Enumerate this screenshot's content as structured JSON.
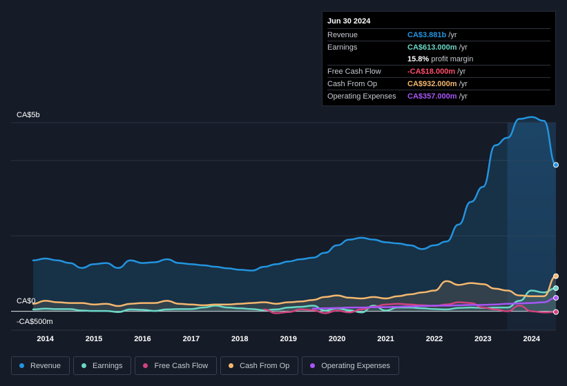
{
  "tooltip": {
    "date": "Jun 30 2024",
    "rows": [
      {
        "label": "Revenue",
        "value": "CA$3.881b",
        "unit": "/yr",
        "color": "#2394df"
      },
      {
        "label": "Earnings",
        "value": "CA$613.000m",
        "unit": "/yr",
        "color": "#6ad7c6"
      },
      {
        "label": "",
        "value": "15.8%",
        "unit": "profit margin",
        "color": "#ffffff"
      },
      {
        "label": "Free Cash Flow",
        "value": "-CA$18.000m",
        "unit": "/yr",
        "color": "#ff4e6b"
      },
      {
        "label": "Cash From Op",
        "value": "CA$932.000m",
        "unit": "/yr",
        "color": "#f5b86f"
      },
      {
        "label": "Operating Expenses",
        "value": "CA$357.000m",
        "unit": "/yr",
        "color": "#a855f7"
      }
    ]
  },
  "legend": [
    {
      "label": "Revenue",
      "color": "#2394df"
    },
    {
      "label": "Earnings",
      "color": "#6ad7c6"
    },
    {
      "label": "Free Cash Flow",
      "color": "#d0437e"
    },
    {
      "label": "Cash From Op",
      "color": "#f5b86f"
    },
    {
      "label": "Operating Expenses",
      "color": "#a855f7"
    }
  ],
  "chart_data": {
    "type": "line",
    "title": "",
    "ylabel_top": "CA$5b",
    "ylabel_zero": "CA$0",
    "ylabel_bottom": "-CA$500m",
    "ylim": [
      -0.5,
      5.0
    ],
    "xlim": [
      2013.75,
      2024.5
    ],
    "x_ticks": [
      "2014",
      "2015",
      "2016",
      "2017",
      "2018",
      "2019",
      "2020",
      "2021",
      "2022",
      "2023",
      "2024"
    ],
    "x_tick_values": [
      2014,
      2015,
      2016,
      2017,
      2018,
      2019,
      2020,
      2021,
      2022,
      2023,
      2024
    ],
    "highlight_from": 2023.5,
    "series": [
      {
        "name": "Revenue",
        "color": "#2394df",
        "area": true,
        "x": [
          2013.75,
          2014.0,
          2014.25,
          2014.5,
          2014.75,
          2015.0,
          2015.25,
          2015.5,
          2015.75,
          2016.0,
          2016.25,
          2016.5,
          2016.75,
          2017.0,
          2017.25,
          2017.5,
          2017.75,
          2018.0,
          2018.25,
          2018.5,
          2018.75,
          2019.0,
          2019.25,
          2019.5,
          2019.75,
          2020.0,
          2020.25,
          2020.5,
          2020.75,
          2021.0,
          2021.25,
          2021.5,
          2021.75,
          2022.0,
          2022.25,
          2022.5,
          2022.75,
          2023.0,
          2023.25,
          2023.5,
          2023.75,
          2024.0,
          2024.25,
          2024.5
        ],
        "y": [
          1.35,
          1.4,
          1.35,
          1.28,
          1.15,
          1.25,
          1.28,
          1.15,
          1.35,
          1.28,
          1.3,
          1.38,
          1.28,
          1.25,
          1.22,
          1.18,
          1.14,
          1.1,
          1.08,
          1.18,
          1.25,
          1.32,
          1.38,
          1.42,
          1.55,
          1.75,
          1.9,
          1.95,
          1.9,
          1.83,
          1.8,
          1.75,
          1.65,
          1.75,
          1.85,
          2.3,
          2.9,
          3.3,
          4.4,
          4.6,
          5.1,
          5.15,
          5.05,
          3.881
        ]
      },
      {
        "name": "Earnings",
        "color": "#6ad7c6",
        "area": true,
        "x": [
          2013.75,
          2014.0,
          2014.25,
          2014.5,
          2014.75,
          2015.0,
          2015.25,
          2015.5,
          2015.75,
          2016.0,
          2016.25,
          2016.5,
          2016.75,
          2017.0,
          2017.25,
          2017.5,
          2017.75,
          2018.0,
          2018.25,
          2018.5,
          2018.75,
          2019.0,
          2019.25,
          2019.5,
          2019.75,
          2020.0,
          2020.25,
          2020.5,
          2020.75,
          2021.0,
          2021.25,
          2021.5,
          2021.75,
          2022.0,
          2022.25,
          2022.5,
          2022.75,
          2023.0,
          2023.25,
          2023.5,
          2023.75,
          2024.0,
          2024.25,
          2024.5
        ],
        "y": [
          0.05,
          0.07,
          0.06,
          0.06,
          0.02,
          0.01,
          0.01,
          -0.02,
          0.05,
          0.04,
          0.01,
          0.05,
          0.06,
          0.06,
          0.1,
          0.15,
          0.1,
          0.08,
          0.06,
          0.03,
          0.05,
          0.1,
          0.12,
          0.15,
          0.02,
          0.08,
          0.03,
          -0.03,
          0.15,
          0.02,
          0.1,
          0.1,
          0.08,
          0.06,
          0.05,
          0.09,
          0.1,
          0.09,
          0.1,
          0.1,
          0.28,
          0.55,
          0.5,
          0.613
        ]
      },
      {
        "name": "Free Cash Flow",
        "color": "#d0437e",
        "area": false,
        "x": [
          2018.5,
          2018.75,
          2019.0,
          2019.25,
          2019.5,
          2019.75,
          2020.0,
          2020.25,
          2020.5,
          2020.75,
          2021.0,
          2021.25,
          2021.5,
          2021.75,
          2022.0,
          2022.25,
          2022.5,
          2022.75,
          2023.0,
          2023.25,
          2023.5,
          2023.75,
          2024.0,
          2024.25,
          2024.5
        ],
        "y": [
          0.05,
          -0.05,
          -0.02,
          0.05,
          0.03,
          -0.05,
          0.02,
          -0.03,
          0.05,
          0.12,
          0.18,
          0.2,
          0.18,
          0.16,
          0.14,
          0.18,
          0.24,
          0.22,
          0.1,
          0.05,
          0.0,
          0.15,
          0.0,
          -0.03,
          -0.018
        ]
      },
      {
        "name": "Cash From Op",
        "color": "#f5b86f",
        "area": true,
        "x": [
          2013.75,
          2014.0,
          2014.25,
          2014.5,
          2014.75,
          2015.0,
          2015.25,
          2015.5,
          2015.75,
          2016.0,
          2016.25,
          2016.5,
          2016.75,
          2017.0,
          2017.25,
          2017.5,
          2017.75,
          2018.0,
          2018.25,
          2018.5,
          2018.75,
          2019.0,
          2019.25,
          2019.5,
          2019.75,
          2020.0,
          2020.25,
          2020.5,
          2020.75,
          2021.0,
          2021.25,
          2021.5,
          2021.75,
          2022.0,
          2022.25,
          2022.5,
          2022.75,
          2023.0,
          2023.25,
          2023.5,
          2023.75,
          2024.0,
          2024.25,
          2024.5
        ],
        "y": [
          0.2,
          0.28,
          0.24,
          0.22,
          0.22,
          0.18,
          0.2,
          0.14,
          0.2,
          0.22,
          0.22,
          0.28,
          0.2,
          0.18,
          0.16,
          0.18,
          0.18,
          0.2,
          0.22,
          0.24,
          0.2,
          0.24,
          0.26,
          0.3,
          0.38,
          0.42,
          0.36,
          0.34,
          0.38,
          0.34,
          0.4,
          0.45,
          0.5,
          0.55,
          0.8,
          0.7,
          0.75,
          0.72,
          0.6,
          0.55,
          0.42,
          0.4,
          0.4,
          0.932
        ]
      },
      {
        "name": "Operating Expenses",
        "color": "#a855f7",
        "area": false,
        "x": [
          2019.5,
          2019.75,
          2020.0,
          2020.25,
          2020.5,
          2020.75,
          2021.0,
          2021.25,
          2021.5,
          2021.75,
          2022.0,
          2022.25,
          2022.5,
          2022.75,
          2023.0,
          2023.25,
          2023.5,
          2023.75,
          2024.0,
          2024.25,
          2024.5
        ],
        "y": [
          0.07,
          0.08,
          0.09,
          0.1,
          0.1,
          0.11,
          0.11,
          0.12,
          0.13,
          0.14,
          0.15,
          0.15,
          0.16,
          0.17,
          0.17,
          0.18,
          0.2,
          0.21,
          0.22,
          0.24,
          0.357
        ]
      }
    ]
  }
}
